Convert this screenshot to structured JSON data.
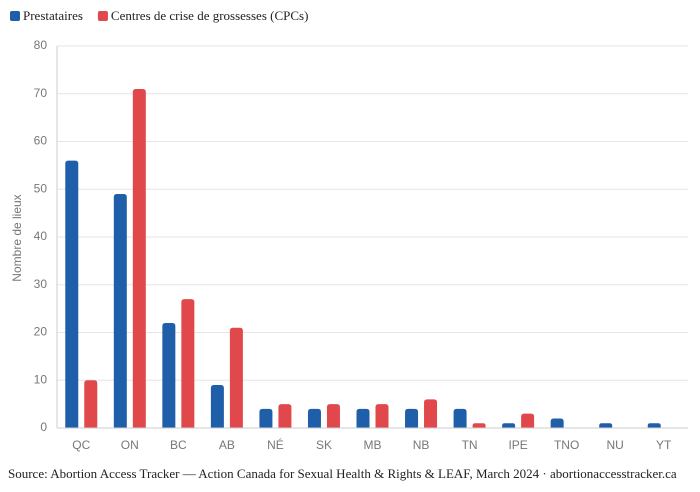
{
  "chart_data": {
    "type": "bar",
    "categories": [
      "QC",
      "ON",
      "BC",
      "AB",
      "NÉ",
      "SK",
      "MB",
      "NB",
      "TN",
      "IPE",
      "TNO",
      "NU",
      "YT"
    ],
    "series": [
      {
        "name": "Prestataires",
        "color": "#1f5ea8",
        "values": [
          56,
          49,
          22,
          9,
          4,
          4,
          4,
          4,
          4,
          1,
          2,
          1,
          1
        ]
      },
      {
        "name": "Centres de crise de grossesses (CPCs)",
        "color": "#e0484c",
        "values": [
          10,
          71,
          27,
          21,
          5,
          5,
          5,
          6,
          1,
          3,
          0,
          0,
          0
        ]
      }
    ],
    "y_label": "Nombre de lieux",
    "ylim": [
      0,
      80
    ],
    "yticks": [
      0,
      10,
      20,
      30,
      40,
      50,
      60,
      70,
      80
    ],
    "grid": true,
    "source": "Source: Abortion Access Tracker — Action Canada for Sexual Health & Rights & LEAF, March 2024 · abortionaccesstracker.ca"
  }
}
